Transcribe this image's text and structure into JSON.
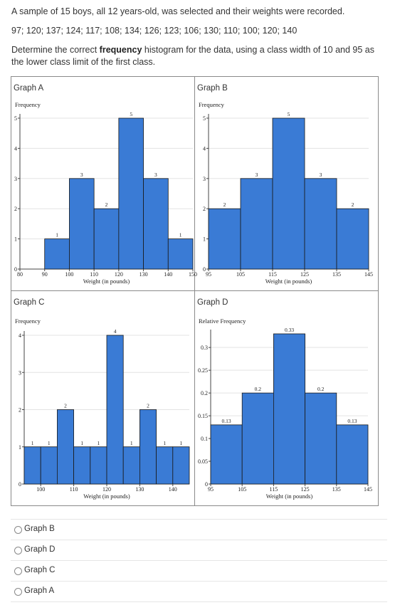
{
  "question": {
    "line1": "A sample of 15 boys, all 12 years-old, was selected and their weights were recorded.",
    "data_line": "97; 120; 137; 124; 117; 108; 134; 126; 123; 106; 130; 110; 100; 120; 140",
    "prompt_before": "Determine the correct ",
    "prompt_bold": "frequency",
    "prompt_after": " histogram for the data, using a class width of 10 and 95 as the lower class limit of the first class."
  },
  "graph_titles": [
    "Graph A",
    "Graph B",
    "Graph C",
    "Graph D"
  ],
  "options": [
    {
      "label": "Graph B"
    },
    {
      "label": "Graph D"
    },
    {
      "label": "Graph C"
    },
    {
      "label": "Graph A"
    }
  ],
  "colors": {
    "bar": "#3a7bd5",
    "bar_stroke": "#1a1a1a",
    "grid": "#e3e3e3"
  },
  "chart_data": [
    {
      "type": "bar",
      "title": "Graph A",
      "ylabel": "Frequency",
      "xlabel": "Weight (in pounds)",
      "bins": [
        [
          90,
          100
        ],
        [
          100,
          110
        ],
        [
          110,
          120
        ],
        [
          120,
          130
        ],
        [
          130,
          140
        ],
        [
          140,
          150
        ]
      ],
      "values": [
        1,
        3,
        2,
        5,
        3,
        1
      ],
      "data_labels": [
        "1",
        "3",
        "2",
        "5",
        "3",
        "1"
      ],
      "xlim": [
        80,
        150
      ],
      "x_ticks": [
        "80",
        "90",
        "100",
        "110",
        "120",
        "130",
        "140",
        "150"
      ],
      "x_tick_values": [
        80,
        90,
        100,
        110,
        120,
        130,
        140,
        150
      ],
      "ylim": [
        0,
        5
      ],
      "y_ticks": [
        "0",
        "1",
        "2",
        "3",
        "4",
        "5"
      ],
      "y_tick_values": [
        0,
        1,
        2,
        3,
        4,
        5
      ]
    },
    {
      "type": "bar",
      "title": "Graph B",
      "ylabel": "Frequency",
      "xlabel": "Weight (in pounds)",
      "bins": [
        [
          95,
          105
        ],
        [
          105,
          115
        ],
        [
          115,
          125
        ],
        [
          125,
          135
        ],
        [
          135,
          145
        ]
      ],
      "values": [
        2,
        3,
        5,
        3,
        2
      ],
      "data_labels": [
        "2",
        "3",
        "5",
        "3",
        "2"
      ],
      "xlim": [
        95,
        145
      ],
      "x_ticks": [
        "95",
        "105",
        "115",
        "125",
        "135",
        "145"
      ],
      "x_tick_values": [
        95,
        105,
        115,
        125,
        135,
        145
      ],
      "ylim": [
        0,
        5
      ],
      "y_ticks": [
        "0",
        "1",
        "2",
        "3",
        "4",
        "5"
      ],
      "y_tick_values": [
        0,
        1,
        2,
        3,
        4,
        5
      ]
    },
    {
      "type": "bar",
      "title": "Graph C",
      "ylabel": "Frequency",
      "xlabel": "Weight (in pounds)",
      "bins": [
        [
          95,
          100
        ],
        [
          100,
          105
        ],
        [
          105,
          110
        ],
        [
          110,
          115
        ],
        [
          115,
          120
        ],
        [
          120,
          125
        ],
        [
          125,
          130
        ],
        [
          130,
          135
        ],
        [
          135,
          140
        ],
        [
          140,
          145
        ]
      ],
      "values": [
        1,
        1,
        2,
        1,
        1,
        4,
        1,
        2,
        1,
        1
      ],
      "data_labels": [
        "1",
        "1",
        "2",
        "1",
        "1",
        "4",
        "1",
        "2",
        "1",
        "1"
      ],
      "xlim": [
        95,
        145
      ],
      "x_ticks": [
        "100",
        "110",
        "120",
        "130",
        "140"
      ],
      "x_tick_values": [
        100,
        110,
        120,
        130,
        140
      ],
      "ylim": [
        0,
        4
      ],
      "y_ticks": [
        "0",
        "1",
        "2",
        "3",
        "4"
      ],
      "y_tick_values": [
        0,
        1,
        2,
        3,
        4
      ]
    },
    {
      "type": "bar",
      "title": "Graph D",
      "ylabel": "Relative Frequency",
      "xlabel": "Weight (in pounds)",
      "bins": [
        [
          95,
          105
        ],
        [
          105,
          115
        ],
        [
          115,
          125
        ],
        [
          125,
          135
        ],
        [
          135,
          145
        ]
      ],
      "values": [
        0.13,
        0.2,
        0.33,
        0.2,
        0.13
      ],
      "data_labels": [
        "0.13",
        "0.2",
        "0.33",
        "0.2",
        "0.13"
      ],
      "xlim": [
        95,
        145
      ],
      "x_ticks": [
        "95",
        "105",
        "115",
        "125",
        "135",
        "145"
      ],
      "x_tick_values": [
        95,
        105,
        115,
        125,
        135,
        145
      ],
      "ylim": [
        0,
        0.33
      ],
      "y_ticks": [
        "0",
        "0.05",
        "0.1",
        "0.15",
        "0.2",
        "0.25",
        "0.3"
      ],
      "y_tick_values": [
        0,
        0.05,
        0.1,
        0.15,
        0.2,
        0.25,
        0.3
      ]
    }
  ]
}
